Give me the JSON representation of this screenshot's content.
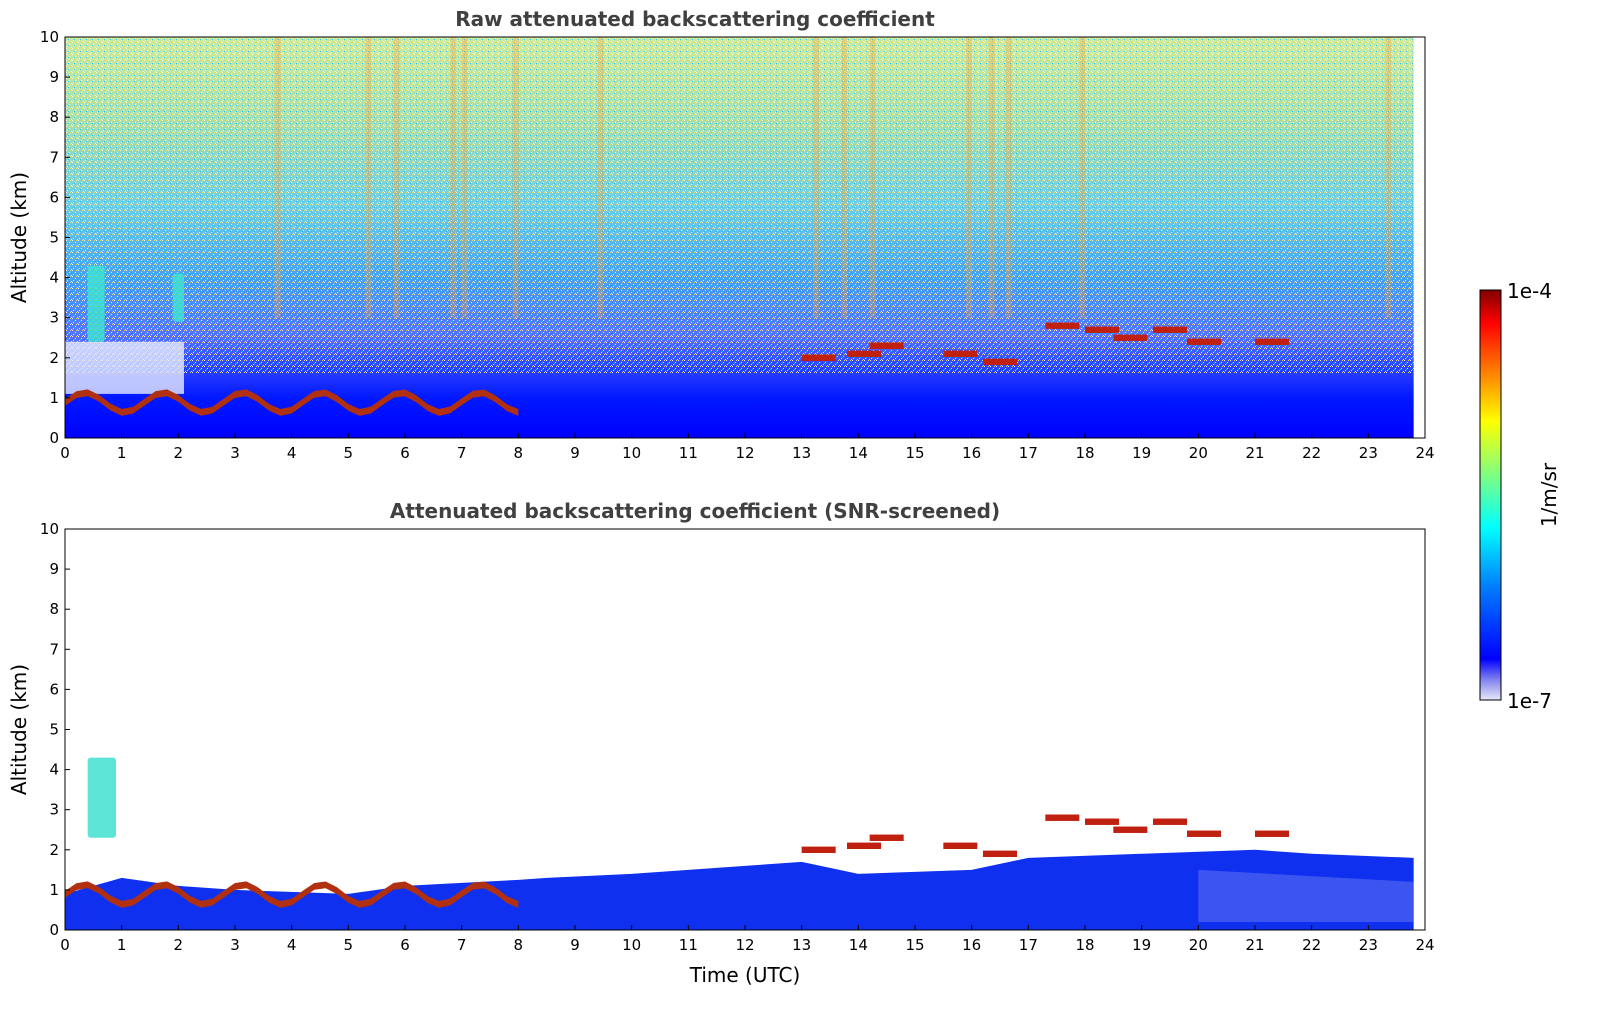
{
  "chart_data": [
    {
      "type": "heatmap",
      "title": "Raw attenuated backscattering coefficient",
      "xlabel": "",
      "ylabel": "Altitude (km)",
      "xlim": [
        0,
        24
      ],
      "ylim": [
        0,
        10
      ],
      "x_ticks": [
        "0",
        "1",
        "2",
        "3",
        "4",
        "5",
        "6",
        "7",
        "8",
        "9",
        "10",
        "11",
        "12",
        "13",
        "14",
        "15",
        "16",
        "17",
        "18",
        "19",
        "20",
        "21",
        "22",
        "23",
        "24"
      ],
      "y_ticks": [
        "0",
        "1",
        "2",
        "3",
        "4",
        "5",
        "6",
        "7",
        "8",
        "9",
        "10"
      ],
      "data_extent_hours": [
        0,
        23.8
      ],
      "features": [
        {
          "feature": "boundary layer (high backscatter)",
          "time_utc": [
            0,
            8
          ],
          "altitude_km": [
            0.5,
            1.2
          ]
        },
        {
          "feature": "mid-level cloud layer",
          "time_utc": [
            13,
            21.3
          ],
          "altitude_km": [
            1.8,
            2.9
          ]
        },
        {
          "feature": "aerosol plume",
          "time_utc": [
            0.4,
            0.7
          ],
          "altitude_km": [
            2.4,
            4.3
          ]
        },
        {
          "feature": "aerosol plume",
          "time_utc": [
            1.9,
            2.1
          ],
          "altitude_km": [
            2.9,
            4.1
          ]
        }
      ]
    },
    {
      "type": "heatmap",
      "title": "Attenuated backscattering coefficient (SNR-screened)",
      "xlabel": "Time (UTC)",
      "ylabel": "Altitude (km)",
      "xlim": [
        0,
        24
      ],
      "ylim": [
        0,
        10
      ],
      "x_ticks": [
        "0",
        "1",
        "2",
        "3",
        "4",
        "5",
        "6",
        "7",
        "8",
        "9",
        "10",
        "11",
        "12",
        "13",
        "14",
        "15",
        "16",
        "17",
        "18",
        "19",
        "20",
        "21",
        "22",
        "23",
        "24"
      ],
      "y_ticks": [
        "0",
        "1",
        "2",
        "3",
        "4",
        "5",
        "6",
        "7",
        "8",
        "9",
        "10"
      ],
      "data_extent_hours": [
        0,
        23.8
      ],
      "features": [
        {
          "feature": "boundary layer (high backscatter)",
          "time_utc": [
            0,
            8
          ],
          "altitude_km": [
            0.5,
            1.2
          ]
        },
        {
          "feature": "mid-level cloud layer",
          "time_utc": [
            13,
            21.3
          ],
          "altitude_km": [
            1.8,
            2.9
          ]
        },
        {
          "feature": "aerosol plume",
          "time_utc": [
            0.4,
            0.9
          ],
          "altitude_km": [
            2.3,
            4.3
          ]
        }
      ]
    }
  ],
  "colorbar": {
    "label": "1/m/sr",
    "min_label": "1e-7",
    "max_label": "1e-4",
    "scale": "log",
    "colormap": "jet",
    "stops": [
      "#c8c8f0",
      "#0000ff",
      "#0080ff",
      "#00ffff",
      "#80ff80",
      "#ffff00",
      "#ff8000",
      "#ff0000",
      "#800000"
    ]
  }
}
